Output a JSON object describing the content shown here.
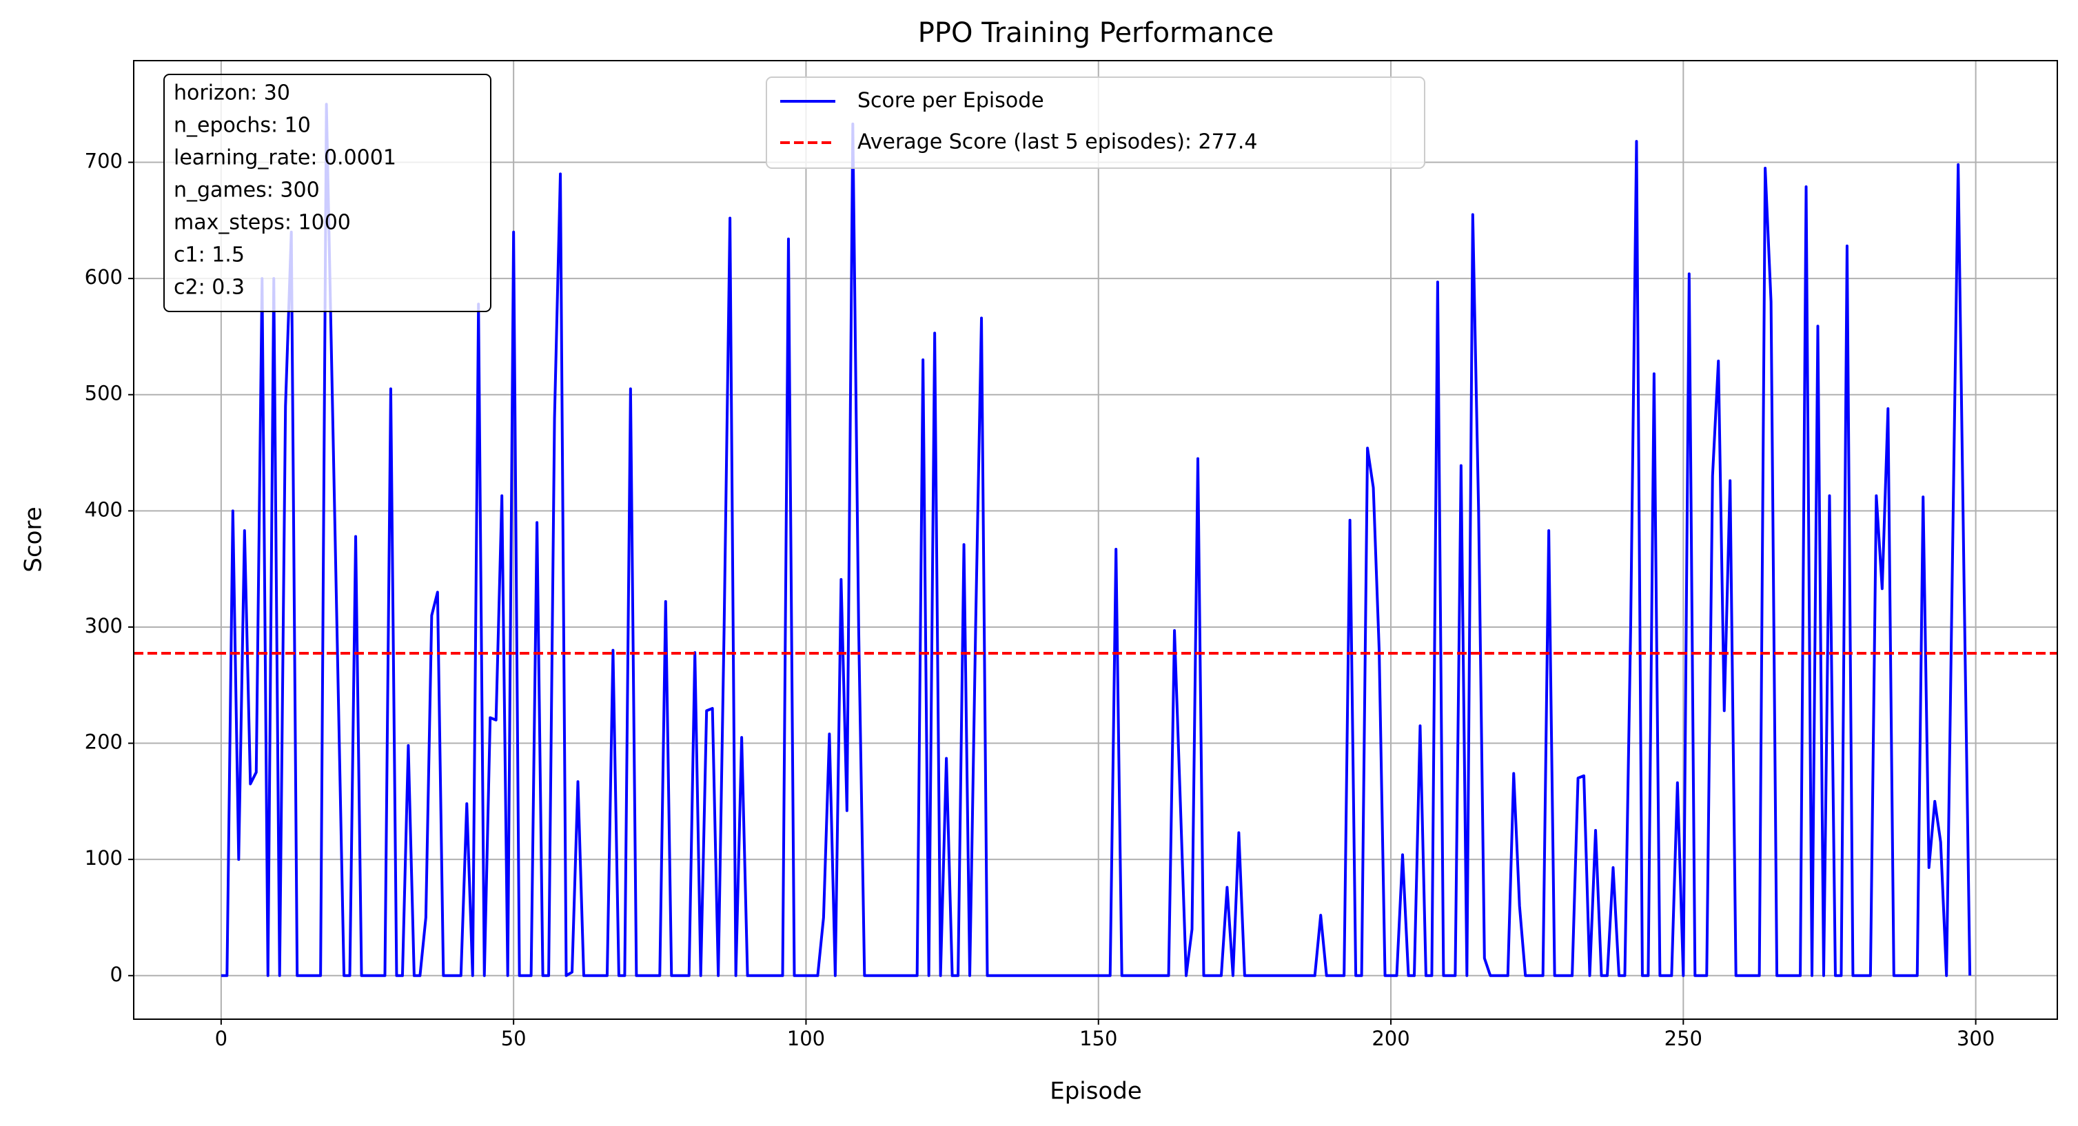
{
  "chart_data": {
    "type": "line",
    "title": "PPO Training Performance",
    "x_label": "Episode",
    "y_label": "Score",
    "x": [
      0,
      1,
      2,
      3,
      4,
      5,
      6,
      7,
      8,
      9,
      10,
      11,
      12,
      13,
      14,
      15,
      16,
      17,
      18,
      19,
      20,
      21,
      22,
      23,
      24,
      25,
      26,
      27,
      28,
      29,
      30,
      31,
      32,
      33,
      34,
      35,
      36,
      37,
      38,
      39,
      40,
      41,
      42,
      43,
      44,
      45,
      46,
      47,
      48,
      49,
      50,
      51,
      52,
      53,
      54,
      55,
      56,
      57,
      58,
      59,
      60,
      61,
      62,
      63,
      64,
      65,
      66,
      67,
      68,
      69,
      70,
      71,
      72,
      73,
      74,
      75,
      76,
      77,
      78,
      79,
      80,
      81,
      82,
      83,
      84,
      85,
      86,
      87,
      88,
      89,
      90,
      91,
      92,
      93,
      94,
      95,
      96,
      97,
      98,
      99,
      100,
      101,
      102,
      103,
      104,
      105,
      106,
      107,
      108,
      109,
      110,
      111,
      112,
      113,
      114,
      115,
      116,
      117,
      118,
      119,
      120,
      121,
      122,
      123,
      124,
      125,
      126,
      127,
      128,
      129,
      130,
      131,
      132,
      133,
      134,
      135,
      136,
      137,
      138,
      139,
      140,
      141,
      142,
      143,
      144,
      145,
      146,
      147,
      148,
      149,
      150,
      151,
      152,
      153,
      154,
      155,
      156,
      157,
      158,
      159,
      160,
      161,
      162,
      163,
      164,
      165,
      166,
      167,
      168,
      169,
      170,
      171,
      172,
      173,
      174,
      175,
      176,
      177,
      178,
      179,
      180,
      181,
      182,
      183,
      184,
      185,
      186,
      187,
      188,
      189,
      190,
      191,
      192,
      193,
      194,
      195,
      196,
      197,
      198,
      199,
      200,
      201,
      202,
      203,
      204,
      205,
      206,
      207,
      208,
      209,
      210,
      211,
      212,
      213,
      214,
      215,
      216,
      217,
      218,
      219,
      220,
      221,
      222,
      223,
      224,
      225,
      226,
      227,
      228,
      229,
      230,
      231,
      232,
      233,
      234,
      235,
      236,
      237,
      238,
      239,
      240,
      241,
      242,
      243,
      244,
      245,
      246,
      247,
      248,
      249,
      250,
      251,
      252,
      253,
      254,
      255,
      256,
      257,
      258,
      259,
      260,
      261,
      262,
      263,
      264,
      265,
      266,
      267,
      268,
      269,
      270,
      271,
      272,
      273,
      274,
      275,
      276,
      277,
      278,
      279,
      280,
      281,
      282,
      283,
      284,
      285,
      286,
      287,
      288,
      289,
      290,
      291,
      292,
      293,
      294,
      295,
      296,
      297,
      298,
      299
    ],
    "series": [
      {
        "name": "Score per Episode",
        "color": "#0000ff",
        "values": [
          0,
          0,
          400,
          100,
          383,
          165,
          175,
          600,
          0,
          600,
          0,
          490,
          640,
          0,
          0,
          0,
          0,
          0,
          750,
          500,
          250,
          0,
          0,
          378,
          0,
          0,
          0,
          0,
          0,
          505,
          0,
          0,
          198,
          0,
          0,
          50,
          310,
          330,
          0,
          0,
          0,
          0,
          148,
          0,
          578,
          0,
          222,
          220,
          413,
          0,
          640,
          0,
          0,
          0,
          390,
          0,
          0,
          480,
          690,
          0,
          3,
          167,
          0,
          0,
          0,
          0,
          0,
          280,
          0,
          0,
          505,
          0,
          0,
          0,
          0,
          0,
          322,
          0,
          0,
          0,
          0,
          278,
          0,
          228,
          230,
          0,
          300,
          652,
          0,
          205,
          0,
          0,
          0,
          0,
          0,
          0,
          0,
          634,
          0,
          0,
          0,
          0,
          0,
          50,
          208,
          0,
          341,
          142,
          733,
          300,
          0,
          0,
          0,
          0,
          0,
          0,
          0,
          0,
          0,
          0,
          530,
          0,
          553,
          0,
          187,
          0,
          0,
          371,
          0,
          300,
          566,
          0,
          0,
          0,
          0,
          0,
          0,
          0,
          0,
          0,
          0,
          0,
          0,
          0,
          0,
          0,
          0,
          0,
          0,
          0,
          0,
          0,
          0,
          367,
          0,
          0,
          0,
          0,
          0,
          0,
          0,
          0,
          0,
          297,
          150,
          0,
          40,
          445,
          0,
          0,
          0,
          0,
          76,
          0,
          123,
          0,
          0,
          0,
          0,
          0,
          0,
          0,
          0,
          0,
          0,
          0,
          0,
          0,
          52,
          0,
          0,
          0,
          0,
          392,
          0,
          0,
          454,
          420,
          280,
          0,
          0,
          0,
          104,
          0,
          0,
          215,
          0,
          0,
          597,
          0,
          0,
          0,
          439,
          0,
          655,
          400,
          15,
          0,
          0,
          0,
          0,
          174,
          60,
          0,
          0,
          0,
          0,
          383,
          0,
          0,
          0,
          0,
          170,
          172,
          0,
          125,
          0,
          0,
          93,
          0,
          0,
          300,
          718,
          0,
          0,
          518,
          0,
          0,
          0,
          166,
          0,
          604,
          0,
          0,
          0,
          430,
          529,
          228,
          426,
          0,
          0,
          0,
          0,
          0,
          695,
          580,
          0,
          0,
          0,
          0,
          0,
          679,
          0,
          559,
          0,
          413,
          0,
          0,
          628,
          0,
          0,
          0,
          0,
          413,
          333,
          488,
          0,
          0,
          0,
          0,
          0,
          412,
          93,
          150,
          115,
          0,
          350,
          698,
          339,
          0
        ]
      },
      {
        "name": "Average Score (last 5 episodes): 277.4",
        "color": "#ff0000",
        "style": "dashed",
        "value": 277.4
      }
    ],
    "annotation": [
      "horizon: 30",
      "n_epochs: 10",
      "learning_rate: 0.0001",
      "n_games: 300",
      "max_steps: 1000",
      "c1: 1.5",
      "c2: 0.3"
    ],
    "xlim": [
      -14.95,
      313.95
    ],
    "ylim": [
      -37.5,
      787.5
    ],
    "xticks": [
      0,
      50,
      100,
      150,
      200,
      250,
      300
    ],
    "yticks": [
      0,
      100,
      200,
      300,
      400,
      500,
      600,
      700
    ],
    "grid": true,
    "legend": "upper center"
  }
}
